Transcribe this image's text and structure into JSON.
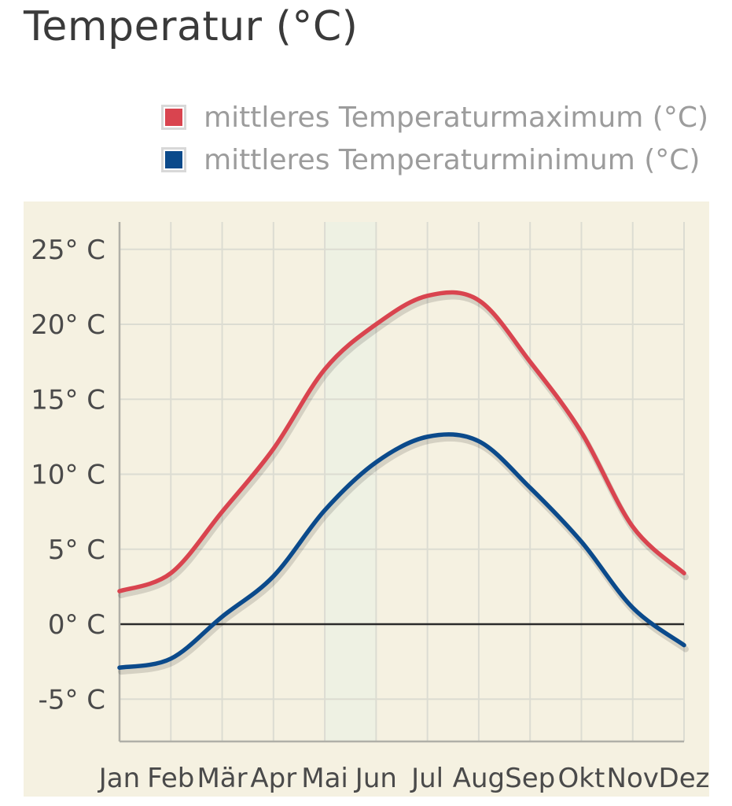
{
  "title": "Temperatur (°C)",
  "legend": [
    {
      "label": "mittleres Temperaturmaximum (°C)",
      "color": "#d9444f"
    },
    {
      "label": "mittleres Temperaturminimum (°C)",
      "color": "#0b4a8b"
    }
  ],
  "chart_data": {
    "type": "line",
    "title": "Temperatur (°C)",
    "categories": [
      "Jan",
      "Feb",
      "Mär",
      "Apr",
      "Mai",
      "Jun",
      "Jul",
      "Aug",
      "Sep",
      "Okt",
      "Nov",
      "Dez"
    ],
    "series": [
      {
        "name": "mittleres Temperaturmaximum (°C)",
        "color": "#d9444f",
        "values": [
          2.2,
          3.4,
          7.5,
          11.7,
          17.0,
          20.0,
          21.9,
          21.6,
          17.5,
          12.8,
          6.5,
          3.4
        ]
      },
      {
        "name": "mittleres Temperaturminimum (°C)",
        "color": "#0b4a8b",
        "values": [
          -2.9,
          -2.3,
          0.5,
          3.2,
          7.6,
          10.8,
          12.5,
          12.2,
          9.1,
          5.5,
          1.1,
          -1.4
        ]
      }
    ],
    "yticks": [
      25,
      20,
      15,
      10,
      5,
      0,
      -5
    ],
    "ytick_labels": [
      "25° C",
      "20° C",
      "15° C",
      "10° C",
      "5° C",
      "0° C",
      "-5° C"
    ],
    "ylim": [
      -8,
      26
    ],
    "grid": true,
    "highlight_column": "Mai",
    "legend_position": "top-right",
    "plot_background": "#f5f1e1"
  }
}
